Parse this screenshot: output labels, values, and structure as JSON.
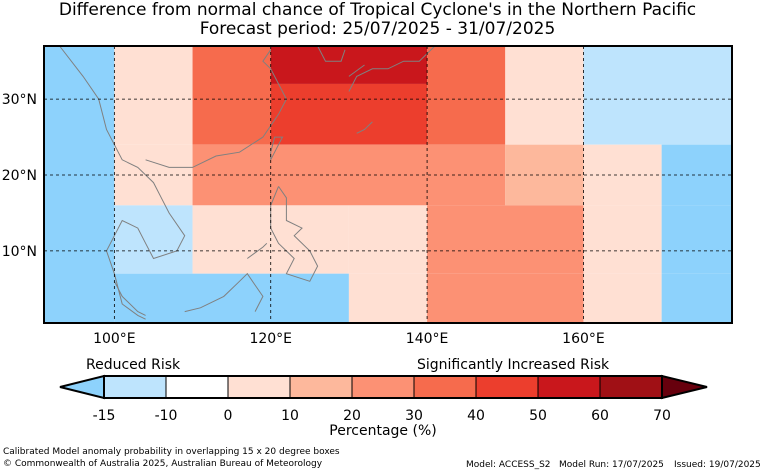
{
  "title": {
    "line1": "Difference from normal chance of Tropical Cyclone's in the Northern Pacific",
    "line2": "Forecast period: 25/07/2025 - 31/07/2025"
  },
  "map": {
    "region": "Northern Pacific",
    "lat_axis": {
      "ticks": [
        "10°N",
        "20°N",
        "30°N"
      ]
    },
    "lon_axis": {
      "ticks": [
        "100°E",
        "120°E",
        "140°E",
        "160°E"
      ]
    },
    "land_outline_color": "#808080",
    "grid": "dashed"
  },
  "chart_data": {
    "type": "heatmap",
    "units": "Percentage (%)",
    "xlim": [
      91,
      179
    ],
    "ylim": [
      0.5,
      37
    ],
    "cells": [
      {
        "lon": [
          91,
          100
        ],
        "lat": [
          0.5,
          37
        ],
        "value": -15
      },
      {
        "lon": [
          100,
          110
        ],
        "lat": [
          24,
          37
        ],
        "value": 0
      },
      {
        "lon": [
          110,
          120
        ],
        "lat": [
          24,
          37
        ],
        "value": 30
      },
      {
        "lon": [
          120,
          140
        ],
        "lat": [
          32,
          37
        ],
        "value": 50
      },
      {
        "lon": [
          120,
          140
        ],
        "lat": [
          24,
          32
        ],
        "value": 40
      },
      {
        "lon": [
          140,
          150
        ],
        "lat": [
          24,
          37
        ],
        "value": 30
      },
      {
        "lon": [
          150,
          160
        ],
        "lat": [
          24,
          37
        ],
        "value": 0
      },
      {
        "lon": [
          160,
          179
        ],
        "lat": [
          24,
          37
        ],
        "value": -10
      },
      {
        "lon": [
          100,
          110
        ],
        "lat": [
          16,
          24
        ],
        "value": 0
      },
      {
        "lon": [
          110,
          150
        ],
        "lat": [
          16,
          24
        ],
        "value": 20
      },
      {
        "lon": [
          150,
          160
        ],
        "lat": [
          16,
          24
        ],
        "value": 10
      },
      {
        "lon": [
          160,
          170
        ],
        "lat": [
          16,
          24
        ],
        "value": 0
      },
      {
        "lon": [
          170,
          179
        ],
        "lat": [
          16,
          24
        ],
        "value": -15
      },
      {
        "lon": [
          100,
          110
        ],
        "lat": [
          7,
          16
        ],
        "value": -10
      },
      {
        "lon": [
          110,
          130
        ],
        "lat": [
          7,
          16
        ],
        "value": 0
      },
      {
        "lon": [
          130,
          140
        ],
        "lat": [
          7,
          16
        ],
        "value": 0
      },
      {
        "lon": [
          140,
          160
        ],
        "lat": [
          7,
          16
        ],
        "value": 20
      },
      {
        "lon": [
          160,
          170
        ],
        "lat": [
          7,
          16
        ],
        "value": 0
      },
      {
        "lon": [
          170,
          179
        ],
        "lat": [
          7,
          16
        ],
        "value": -15
      },
      {
        "lon": [
          100,
          130
        ],
        "lat": [
          0.5,
          7
        ],
        "value": -15
      },
      {
        "lon": [
          130,
          140
        ],
        "lat": [
          0.5,
          7
        ],
        "value": 0
      },
      {
        "lon": [
          140,
          160
        ],
        "lat": [
          0.5,
          7
        ],
        "value": 20
      },
      {
        "lon": [
          160,
          170
        ],
        "lat": [
          0.5,
          7
        ],
        "value": 0
      },
      {
        "lon": [
          170,
          179
        ],
        "lat": [
          0.5,
          7
        ],
        "value": -15
      }
    ],
    "colorbar": {
      "bounds": [
        -15,
        -10,
        0,
        10,
        20,
        30,
        40,
        50,
        60,
        70
      ],
      "tick_labels": [
        "-15",
        "-10",
        "0",
        "10",
        "20",
        "30",
        "40",
        "50",
        "60",
        "70"
      ],
      "colors": [
        "#bee4fd",
        "#ffffff",
        "#ffe0d3",
        "#fdb89c",
        "#fc9174",
        "#f66b4d",
        "#ec3e2d",
        "#c9171c",
        "#a01015"
      ],
      "under_color": "#8dd2fc",
      "over_color": "#67000d",
      "label": "Percentage (%)",
      "left_caption": "Reduced Risk",
      "right_caption": "Significantly Increased Risk"
    }
  },
  "colors": {
    "-15": "#8dd2fc",
    "-10": "#bee4fd",
    "0": "#ffffff",
    "10": "#ffe0d3",
    "20": "#fc9174",
    "30": "#f66b4d",
    "40": "#ec3e2d",
    "50": "#c9171c",
    "10b": "#fdb89c"
  },
  "footer": {
    "note": "Calibrated Model anomaly probability in overlapping 15 x 20 degree boxes",
    "copyright": "© Commonwealth of Australia 2025, Australian Bureau of Meteorology",
    "model": "Model: ACCESS_S2",
    "run": "Model Run: 17/07/2025",
    "issued": "Issued: 19/07/2025"
  }
}
